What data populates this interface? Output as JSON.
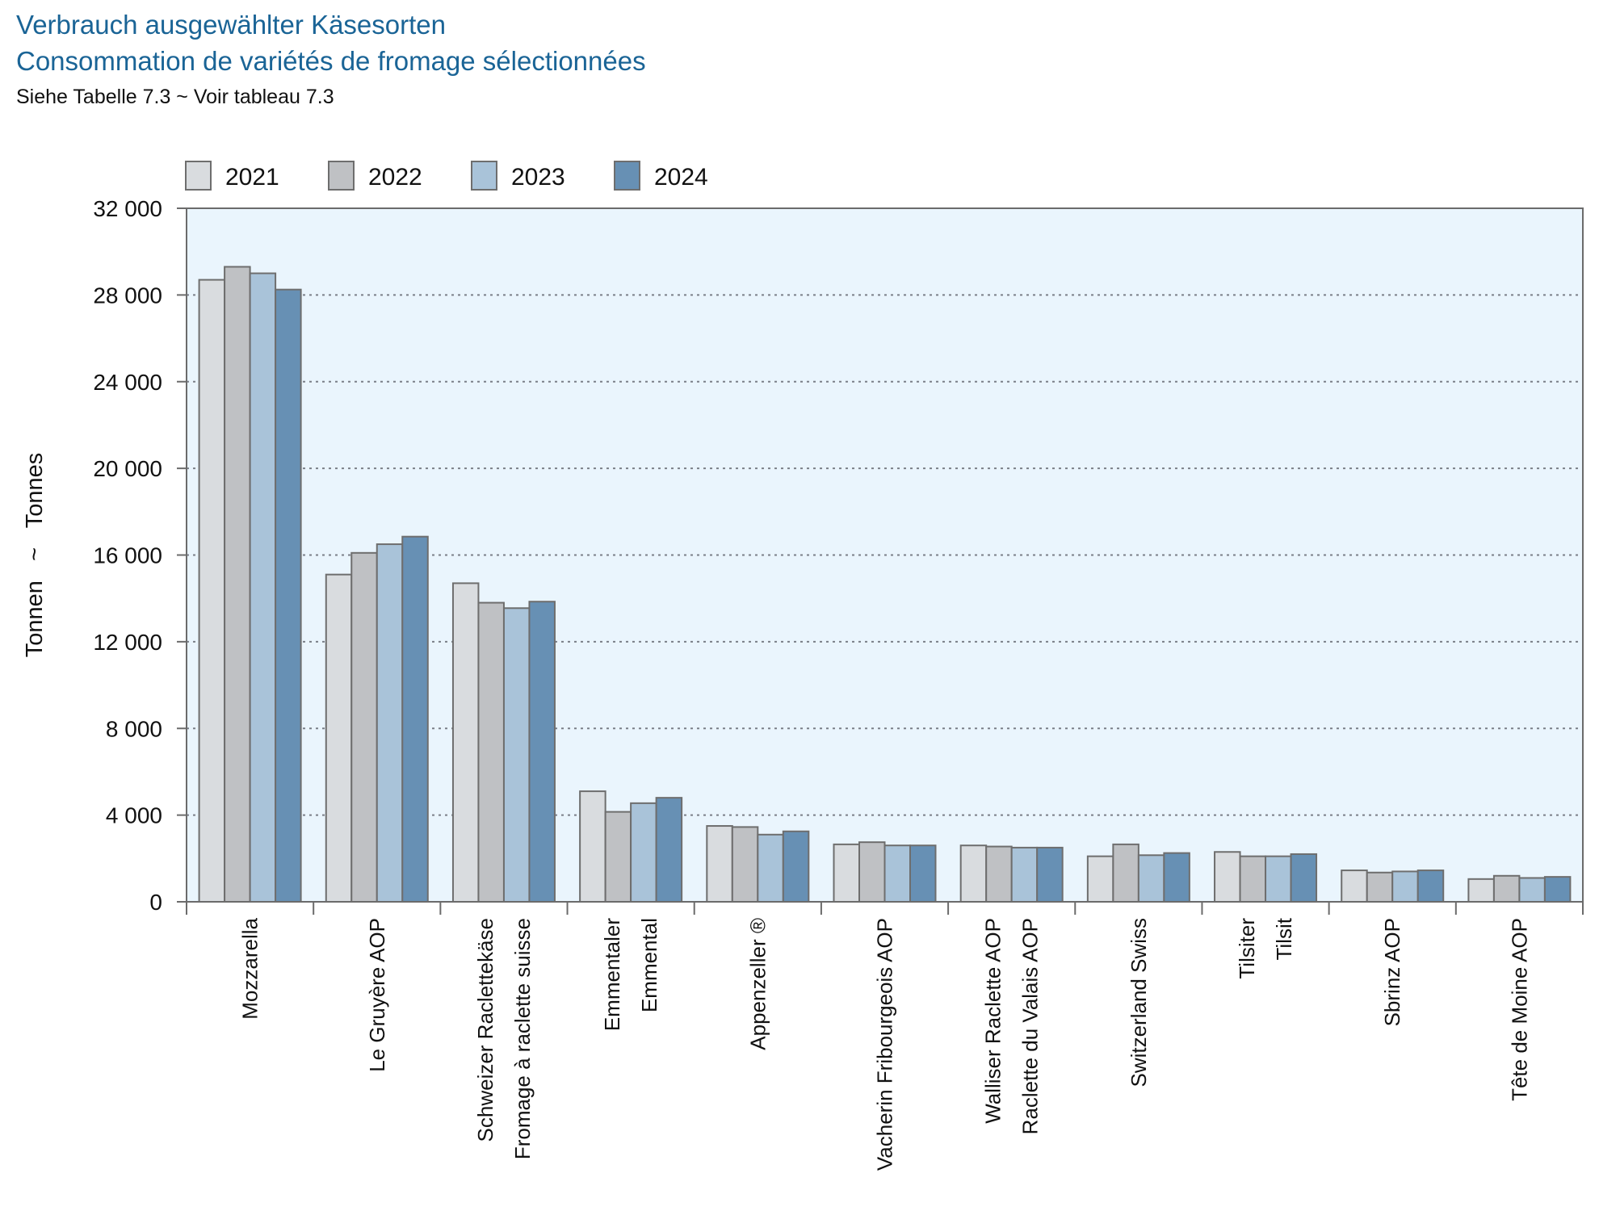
{
  "title_de": "Verbrauch ausgewählter Käsesorten",
  "title_fr": "Consommation de variétés de fromage sélectionnées",
  "source_note": "Siehe Tabelle 7.3   ~   Voir tableau 7.3",
  "colors": {
    "title": "#1a6496",
    "plot_background": "#eaf5fd",
    "gridline": "#7a7f88",
    "axis": "#6b6b6b",
    "bar_border": "#6e6e6e"
  },
  "chart_data": {
    "type": "bar",
    "ylabel": "Tonnen   ~   Tonnes",
    "ylim": [
      0,
      32000
    ],
    "yticks": [
      {
        "value": 0,
        "label": "0"
      },
      {
        "value": 4000,
        "label": "4 000"
      },
      {
        "value": 8000,
        "label": "8 000"
      },
      {
        "value": 12000,
        "label": "12 000"
      },
      {
        "value": 16000,
        "label": "16 000"
      },
      {
        "value": 20000,
        "label": "20 000"
      },
      {
        "value": 24000,
        "label": "24 000"
      },
      {
        "value": 28000,
        "label": "28 000"
      },
      {
        "value": 32000,
        "label": "32 000"
      }
    ],
    "grid": "horizontal dotted",
    "legend_position": "top-left",
    "categories": [
      [
        "Mozzarella"
      ],
      [
        "Le Gruyère AOP"
      ],
      [
        "Schweizer Raclettekäse",
        "Fromage à raclette suisse"
      ],
      [
        "Emmentaler",
        "Emmental"
      ],
      [
        "Appenzeller ®"
      ],
      [
        "Vacherin Fribourgeois AOP"
      ],
      [
        "Walliser Raclette AOP",
        "Raclette du Valais AOP"
      ],
      [
        "Switzerland Swiss"
      ],
      [
        "Tilsiter",
        "Tilsit"
      ],
      [
        "Sbrinz AOP"
      ],
      [
        "Tête de Moine AOP"
      ]
    ],
    "series": [
      {
        "name": "2021",
        "color": "#d9dcdf",
        "values": [
          28700,
          15100,
          14700,
          5100,
          3500,
          2650,
          2600,
          2100,
          2300,
          1450,
          1050
        ]
      },
      {
        "name": "2022",
        "color": "#bfc1c4",
        "values": [
          29300,
          16100,
          13800,
          4150,
          3450,
          2750,
          2550,
          2650,
          2100,
          1350,
          1200
        ]
      },
      {
        "name": "2023",
        "color": "#a9c3d9",
        "values": [
          29000,
          16500,
          13550,
          4550,
          3100,
          2600,
          2500,
          2150,
          2100,
          1400,
          1100
        ]
      },
      {
        "name": "2024",
        "color": "#6790b4",
        "values": [
          28250,
          16850,
          13850,
          4800,
          3250,
          2600,
          2500,
          2250,
          2200,
          1450,
          1150
        ]
      }
    ]
  }
}
